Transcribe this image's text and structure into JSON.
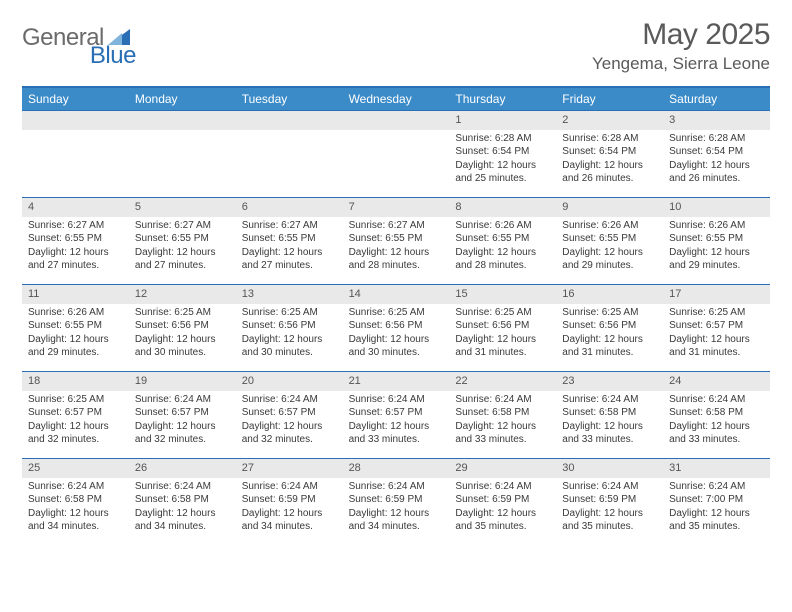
{
  "brand": {
    "part1": "General",
    "part2": "Blue"
  },
  "title": "May 2025",
  "location": "Yengema, Sierra Leone",
  "colors": {
    "header_bar": "#3b8bc9",
    "border": "#2a6fb5",
    "daynum_bg": "#e9e9e9",
    "text": "#3a3a3a",
    "title_text": "#5a5a5a"
  },
  "typography": {
    "title_fontsize": 30,
    "location_fontsize": 17,
    "weekday_fontsize": 12,
    "body_fontsize": 10
  },
  "weekdays": [
    "Sunday",
    "Monday",
    "Tuesday",
    "Wednesday",
    "Thursday",
    "Friday",
    "Saturday"
  ],
  "weeks": [
    [
      null,
      null,
      null,
      null,
      {
        "n": "1",
        "sr": "Sunrise: 6:28 AM",
        "ss": "Sunset: 6:54 PM",
        "dl": "Daylight: 12 hours and 25 minutes."
      },
      {
        "n": "2",
        "sr": "Sunrise: 6:28 AM",
        "ss": "Sunset: 6:54 PM",
        "dl": "Daylight: 12 hours and 26 minutes."
      },
      {
        "n": "3",
        "sr": "Sunrise: 6:28 AM",
        "ss": "Sunset: 6:54 PM",
        "dl": "Daylight: 12 hours and 26 minutes."
      }
    ],
    [
      {
        "n": "4",
        "sr": "Sunrise: 6:27 AM",
        "ss": "Sunset: 6:55 PM",
        "dl": "Daylight: 12 hours and 27 minutes."
      },
      {
        "n": "5",
        "sr": "Sunrise: 6:27 AM",
        "ss": "Sunset: 6:55 PM",
        "dl": "Daylight: 12 hours and 27 minutes."
      },
      {
        "n": "6",
        "sr": "Sunrise: 6:27 AM",
        "ss": "Sunset: 6:55 PM",
        "dl": "Daylight: 12 hours and 27 minutes."
      },
      {
        "n": "7",
        "sr": "Sunrise: 6:27 AM",
        "ss": "Sunset: 6:55 PM",
        "dl": "Daylight: 12 hours and 28 minutes."
      },
      {
        "n": "8",
        "sr": "Sunrise: 6:26 AM",
        "ss": "Sunset: 6:55 PM",
        "dl": "Daylight: 12 hours and 28 minutes."
      },
      {
        "n": "9",
        "sr": "Sunrise: 6:26 AM",
        "ss": "Sunset: 6:55 PM",
        "dl": "Daylight: 12 hours and 29 minutes."
      },
      {
        "n": "10",
        "sr": "Sunrise: 6:26 AM",
        "ss": "Sunset: 6:55 PM",
        "dl": "Daylight: 12 hours and 29 minutes."
      }
    ],
    [
      {
        "n": "11",
        "sr": "Sunrise: 6:26 AM",
        "ss": "Sunset: 6:55 PM",
        "dl": "Daylight: 12 hours and 29 minutes."
      },
      {
        "n": "12",
        "sr": "Sunrise: 6:25 AM",
        "ss": "Sunset: 6:56 PM",
        "dl": "Daylight: 12 hours and 30 minutes."
      },
      {
        "n": "13",
        "sr": "Sunrise: 6:25 AM",
        "ss": "Sunset: 6:56 PM",
        "dl": "Daylight: 12 hours and 30 minutes."
      },
      {
        "n": "14",
        "sr": "Sunrise: 6:25 AM",
        "ss": "Sunset: 6:56 PM",
        "dl": "Daylight: 12 hours and 30 minutes."
      },
      {
        "n": "15",
        "sr": "Sunrise: 6:25 AM",
        "ss": "Sunset: 6:56 PM",
        "dl": "Daylight: 12 hours and 31 minutes."
      },
      {
        "n": "16",
        "sr": "Sunrise: 6:25 AM",
        "ss": "Sunset: 6:56 PM",
        "dl": "Daylight: 12 hours and 31 minutes."
      },
      {
        "n": "17",
        "sr": "Sunrise: 6:25 AM",
        "ss": "Sunset: 6:57 PM",
        "dl": "Daylight: 12 hours and 31 minutes."
      }
    ],
    [
      {
        "n": "18",
        "sr": "Sunrise: 6:25 AM",
        "ss": "Sunset: 6:57 PM",
        "dl": "Daylight: 12 hours and 32 minutes."
      },
      {
        "n": "19",
        "sr": "Sunrise: 6:24 AM",
        "ss": "Sunset: 6:57 PM",
        "dl": "Daylight: 12 hours and 32 minutes."
      },
      {
        "n": "20",
        "sr": "Sunrise: 6:24 AM",
        "ss": "Sunset: 6:57 PM",
        "dl": "Daylight: 12 hours and 32 minutes."
      },
      {
        "n": "21",
        "sr": "Sunrise: 6:24 AM",
        "ss": "Sunset: 6:57 PM",
        "dl": "Daylight: 12 hours and 33 minutes."
      },
      {
        "n": "22",
        "sr": "Sunrise: 6:24 AM",
        "ss": "Sunset: 6:58 PM",
        "dl": "Daylight: 12 hours and 33 minutes."
      },
      {
        "n": "23",
        "sr": "Sunrise: 6:24 AM",
        "ss": "Sunset: 6:58 PM",
        "dl": "Daylight: 12 hours and 33 minutes."
      },
      {
        "n": "24",
        "sr": "Sunrise: 6:24 AM",
        "ss": "Sunset: 6:58 PM",
        "dl": "Daylight: 12 hours and 33 minutes."
      }
    ],
    [
      {
        "n": "25",
        "sr": "Sunrise: 6:24 AM",
        "ss": "Sunset: 6:58 PM",
        "dl": "Daylight: 12 hours and 34 minutes."
      },
      {
        "n": "26",
        "sr": "Sunrise: 6:24 AM",
        "ss": "Sunset: 6:58 PM",
        "dl": "Daylight: 12 hours and 34 minutes."
      },
      {
        "n": "27",
        "sr": "Sunrise: 6:24 AM",
        "ss": "Sunset: 6:59 PM",
        "dl": "Daylight: 12 hours and 34 minutes."
      },
      {
        "n": "28",
        "sr": "Sunrise: 6:24 AM",
        "ss": "Sunset: 6:59 PM",
        "dl": "Daylight: 12 hours and 34 minutes."
      },
      {
        "n": "29",
        "sr": "Sunrise: 6:24 AM",
        "ss": "Sunset: 6:59 PM",
        "dl": "Daylight: 12 hours and 35 minutes."
      },
      {
        "n": "30",
        "sr": "Sunrise: 6:24 AM",
        "ss": "Sunset: 6:59 PM",
        "dl": "Daylight: 12 hours and 35 minutes."
      },
      {
        "n": "31",
        "sr": "Sunrise: 6:24 AM",
        "ss": "Sunset: 7:00 PM",
        "dl": "Daylight: 12 hours and 35 minutes."
      }
    ]
  ]
}
